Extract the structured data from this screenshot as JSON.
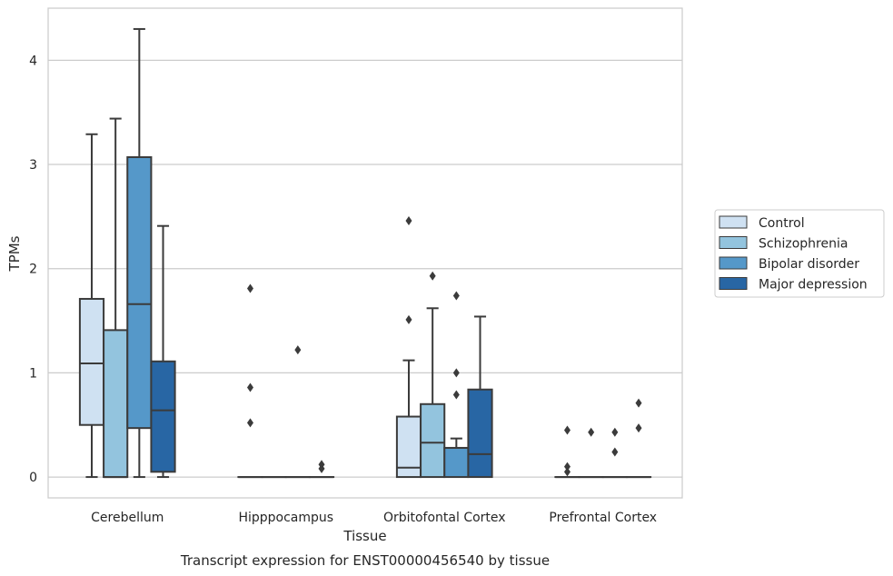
{
  "chart_data": {
    "type": "box",
    "title": "Transcript expression for ENST00000456540 by tissue",
    "xlabel": "Tissue",
    "ylabel": "TPMs",
    "ylim": [
      -0.2,
      4.5
    ],
    "yticks": [
      0,
      1,
      2,
      3,
      4
    ],
    "grid": "horizontal",
    "legend_position": "right",
    "categories": [
      "Cerebellum",
      "Hipppocampus",
      "Orbitofontal Cortex",
      "Prefrontal Cortex"
    ],
    "series": [
      {
        "name": "Control",
        "color": "#cfe1f2",
        "boxes": [
          {
            "whislo": 0,
            "q1": 0.5,
            "med": 1.09,
            "q3": 1.71,
            "whishi": 3.29,
            "fliers": []
          },
          {
            "whislo": 0,
            "q1": 0,
            "med": 0,
            "q3": 0,
            "whishi": 0,
            "fliers": [
              1.81,
              0.86,
              0.52
            ]
          },
          {
            "whislo": 0,
            "q1": 0,
            "med": 0.09,
            "q3": 0.58,
            "whishi": 1.12,
            "fliers": [
              2.46,
              1.51
            ]
          },
          {
            "whislo": 0,
            "q1": 0,
            "med": 0,
            "q3": 0,
            "whishi": 0,
            "fliers": [
              0.45,
              0.1,
              0.05
            ]
          }
        ]
      },
      {
        "name": "Schizophrenia",
        "color": "#93c4de",
        "boxes": [
          {
            "whislo": 0,
            "q1": 0,
            "med": 0,
            "q3": 1.41,
            "whishi": 3.44,
            "fliers": []
          },
          {
            "whislo": 0,
            "q1": 0,
            "med": 0,
            "q3": 0,
            "whishi": 0,
            "fliers": []
          },
          {
            "whislo": 0,
            "q1": 0,
            "med": 0.33,
            "q3": 0.7,
            "whishi": 1.62,
            "fliers": [
              1.93
            ]
          },
          {
            "whislo": 0,
            "q1": 0,
            "med": 0,
            "q3": 0,
            "whishi": 0,
            "fliers": [
              0.43
            ]
          }
        ]
      },
      {
        "name": "Bipolar disorder",
        "color": "#5598c9",
        "boxes": [
          {
            "whislo": 0,
            "q1": 0.47,
            "med": 1.66,
            "q3": 3.07,
            "whishi": 4.3,
            "fliers": []
          },
          {
            "whislo": 0,
            "q1": 0,
            "med": 0,
            "q3": 0,
            "whishi": 0,
            "fliers": [
              1.22
            ]
          },
          {
            "whislo": 0,
            "q1": 0,
            "med": 0.28,
            "q3": 0.28,
            "whishi": 0.37,
            "fliers": [
              1.74,
              1.0,
              0.79
            ]
          },
          {
            "whislo": 0,
            "q1": 0,
            "med": 0,
            "q3": 0,
            "whishi": 0,
            "fliers": [
              0.43,
              0.24
            ]
          }
        ]
      },
      {
        "name": "Major depression",
        "color": "#2866a4",
        "boxes": [
          {
            "whislo": 0,
            "q1": 0.05,
            "med": 0.64,
            "q3": 1.11,
            "whishi": 2.41,
            "fliers": []
          },
          {
            "whislo": 0,
            "q1": 0,
            "med": 0,
            "q3": 0,
            "whishi": 0,
            "fliers": [
              0.12,
              0.08
            ]
          },
          {
            "whislo": 0,
            "q1": 0,
            "med": 0.22,
            "q3": 0.84,
            "whishi": 1.54,
            "fliers": []
          },
          {
            "whislo": 0,
            "q1": 0,
            "med": 0,
            "q3": 0,
            "whishi": 0,
            "fliers": [
              0.71,
              0.47
            ]
          }
        ]
      }
    ]
  }
}
